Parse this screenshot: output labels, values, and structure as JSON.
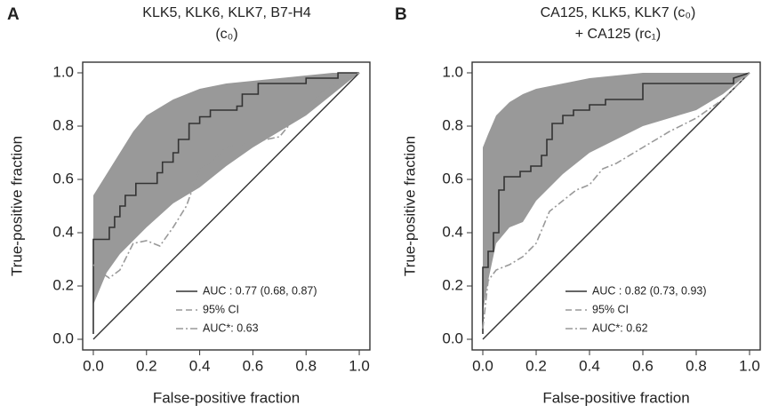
{
  "chart_data": [
    {
      "type": "line",
      "label": "A",
      "title": [
        "KLK5, KLK6, KLK7, B7-H4",
        "(c₀)"
      ],
      "x_label": "False-positive fraction",
      "y_label": "True-positive fraction",
      "xlim": [
        -0.04,
        1.04
      ],
      "ylim": [
        -0.04,
        1.04
      ],
      "xticks": [
        {
          "value": 0,
          "label": "0.0"
        },
        0.2,
        0.4,
        0.6,
        0.8,
        {
          "value": 1,
          "label": "1.0"
        }
      ],
      "yticks": [
        {
          "value": 0,
          "label": "0.0"
        },
        0.2,
        0.4,
        0.6,
        0.8,
        {
          "value": 1,
          "label": "1.0"
        }
      ],
      "legend": "lower right",
      "series": [
        {
          "name": "AUC : 0.77 (0.68, 0.87)",
          "style": "solid",
          "color": "#333333",
          "x": [
            0,
            0,
            0.06,
            0.06,
            0.08,
            0.08,
            0.1,
            0.1,
            0.12,
            0.12,
            0.16,
            0.16,
            0.24,
            0.24,
            0.26,
            0.26,
            0.3,
            0.3,
            0.32,
            0.32,
            0.36,
            0.36,
            0.4,
            0.4,
            0.44,
            0.44,
            0.54,
            0.54,
            0.56,
            0.56,
            0.62,
            0.62,
            0.8,
            0.8,
            0.92,
            0.92,
            1.0
          ],
          "values": [
            0.02,
            0.375,
            0.375,
            0.42,
            0.42,
            0.46,
            0.46,
            0.5,
            0.5,
            0.54,
            0.54,
            0.585,
            0.585,
            0.625,
            0.625,
            0.665,
            0.665,
            0.7,
            0.7,
            0.75,
            0.75,
            0.81,
            0.81,
            0.835,
            0.835,
            0.86,
            0.86,
            0.875,
            0.875,
            0.92,
            0.92,
            0.96,
            0.96,
            0.98,
            0.98,
            1.0,
            1.0
          ]
        },
        {
          "name": "95% CI",
          "style": "band",
          "color": "#999999",
          "x": [
            0,
            0.05,
            0.1,
            0.15,
            0.2,
            0.3,
            0.4,
            0.5,
            0.6,
            0.7,
            0.8,
            0.9,
            1.0
          ],
          "upper": [
            0.54,
            0.62,
            0.7,
            0.78,
            0.84,
            0.9,
            0.94,
            0.96,
            0.97,
            0.98,
            0.99,
            1.0,
            1.0
          ],
          "lower": [
            0.13,
            0.25,
            0.32,
            0.37,
            0.42,
            0.51,
            0.57,
            0.65,
            0.72,
            0.78,
            0.84,
            0.92,
            1.0
          ]
        },
        {
          "name": "AUC*: 0.63",
          "style": "dashdot",
          "color": "#999999",
          "x": [
            0,
            0.03,
            0.06,
            0.1,
            0.15,
            0.2,
            0.25,
            0.3,
            0.35,
            0.4,
            0.45,
            0.5,
            0.6,
            0.7,
            0.75,
            0.8,
            0.85,
            0.9,
            1.0
          ],
          "values": [
            0.28,
            0.25,
            0.23,
            0.26,
            0.36,
            0.37,
            0.35,
            0.42,
            0.5,
            0.64,
            0.67,
            0.72,
            0.74,
            0.76,
            0.82,
            0.86,
            0.92,
            0.95,
            1.0
          ]
        }
      ]
    },
    {
      "type": "line",
      "label": "B",
      "title": [
        "CA125, KLK5, KLK7 (c₀)",
        "+ CA125 (rc₁)"
      ],
      "x_label": "False-positive fraction",
      "y_label": "True-positive fraction",
      "xlim": [
        -0.04,
        1.04
      ],
      "ylim": [
        -0.04,
        1.04
      ],
      "xticks": [
        {
          "value": 0,
          "label": "0.0"
        },
        0.2,
        0.4,
        0.6,
        0.8,
        {
          "value": 1,
          "label": "1.0"
        }
      ],
      "yticks": [
        {
          "value": 0,
          "label": "0.0"
        },
        0.2,
        0.4,
        0.6,
        0.8,
        {
          "value": 1,
          "label": "1.0"
        }
      ],
      "legend": "lower right",
      "series": [
        {
          "name": "AUC : 0.82 (0.73, 0.93)",
          "style": "solid",
          "color": "#333333",
          "x": [
            0,
            0,
            0.02,
            0.02,
            0.04,
            0.04,
            0.06,
            0.06,
            0.08,
            0.08,
            0.14,
            0.14,
            0.18,
            0.18,
            0.22,
            0.22,
            0.24,
            0.24,
            0.26,
            0.26,
            0.3,
            0.3,
            0.34,
            0.34,
            0.4,
            0.4,
            0.46,
            0.46,
            0.6,
            0.6,
            0.94,
            0.94,
            1.0
          ],
          "values": [
            0.02,
            0.27,
            0.27,
            0.33,
            0.33,
            0.4,
            0.4,
            0.56,
            0.56,
            0.61,
            0.61,
            0.63,
            0.63,
            0.65,
            0.65,
            0.69,
            0.69,
            0.75,
            0.75,
            0.81,
            0.81,
            0.84,
            0.84,
            0.86,
            0.86,
            0.88,
            0.88,
            0.9,
            0.9,
            0.96,
            0.96,
            0.98,
            1.0
          ]
        },
        {
          "name": "95% CI",
          "style": "band",
          "color": "#999999",
          "x": [
            0,
            0.02,
            0.05,
            0.1,
            0.15,
            0.2,
            0.3,
            0.4,
            0.5,
            0.6,
            0.7,
            0.8,
            0.9,
            1.0
          ],
          "upper": [
            0.72,
            0.77,
            0.84,
            0.89,
            0.92,
            0.94,
            0.96,
            0.98,
            0.99,
            1.0,
            1.0,
            1.0,
            1.0,
            1.0
          ],
          "lower": [
            0.1,
            0.22,
            0.36,
            0.42,
            0.44,
            0.52,
            0.62,
            0.7,
            0.75,
            0.8,
            0.83,
            0.86,
            0.92,
            1.0
          ]
        },
        {
          "name": "AUC*: 0.62",
          "style": "dashdot",
          "color": "#999999",
          "x": [
            0,
            0.02,
            0.05,
            0.1,
            0.15,
            0.2,
            0.25,
            0.3,
            0.35,
            0.4,
            0.45,
            0.5,
            0.6,
            0.7,
            0.8,
            0.9,
            1.0
          ],
          "values": [
            0.04,
            0.22,
            0.26,
            0.28,
            0.31,
            0.36,
            0.48,
            0.52,
            0.56,
            0.58,
            0.64,
            0.66,
            0.72,
            0.78,
            0.83,
            0.9,
            1.0
          ]
        }
      ]
    }
  ]
}
